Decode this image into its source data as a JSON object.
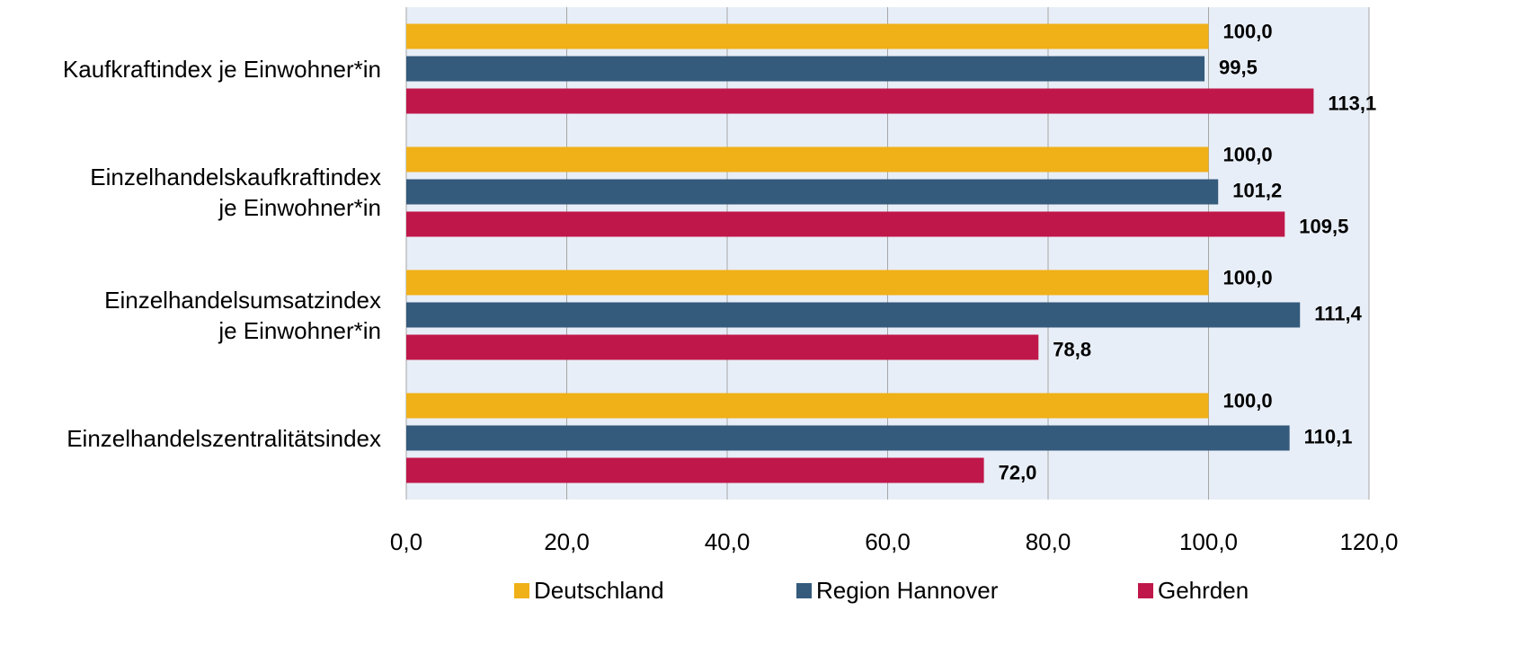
{
  "chart_data": {
    "type": "hbar",
    "categories": [
      "Kaufkraftindex je Einwohner*in",
      "Einzelhandelskaufkraftindex\nje Einwohner*in",
      "Einzelhandelsumsatzindex\nje Einwohner*in",
      "Einzelhandelszentralitätsindex"
    ],
    "series": [
      {
        "name": "Deutschland",
        "color": "#f0b017",
        "values": [
          100.0,
          100.0,
          100.0,
          100.0
        ],
        "value_labels": [
          "100,0",
          "100,0",
          "100,0",
          "100,0"
        ]
      },
      {
        "name": "Region Hannover",
        "color": "#345a7c",
        "values": [
          99.5,
          101.2,
          111.4,
          110.1
        ],
        "value_labels": [
          "99,5",
          "101,2",
          "111,4",
          "110,1"
        ]
      },
      {
        "name": "Gehrden",
        "color": "#c0174a",
        "values": [
          113.1,
          109.5,
          78.8,
          72.0
        ],
        "value_labels": [
          "113,1",
          "109,5",
          "78,8",
          "72,0"
        ]
      }
    ],
    "xlim": [
      0,
      120
    ],
    "xticks": [
      {
        "value": 0,
        "label": "0,0"
      },
      {
        "value": 20,
        "label": "20,0"
      },
      {
        "value": 40,
        "label": "40,0"
      },
      {
        "value": 60,
        "label": "60,0"
      },
      {
        "value": 80,
        "label": "80,0"
      },
      {
        "value": 100,
        "label": "100,0"
      },
      {
        "value": 120,
        "label": "120,0"
      }
    ],
    "grid": true,
    "legend": "bottom"
  }
}
